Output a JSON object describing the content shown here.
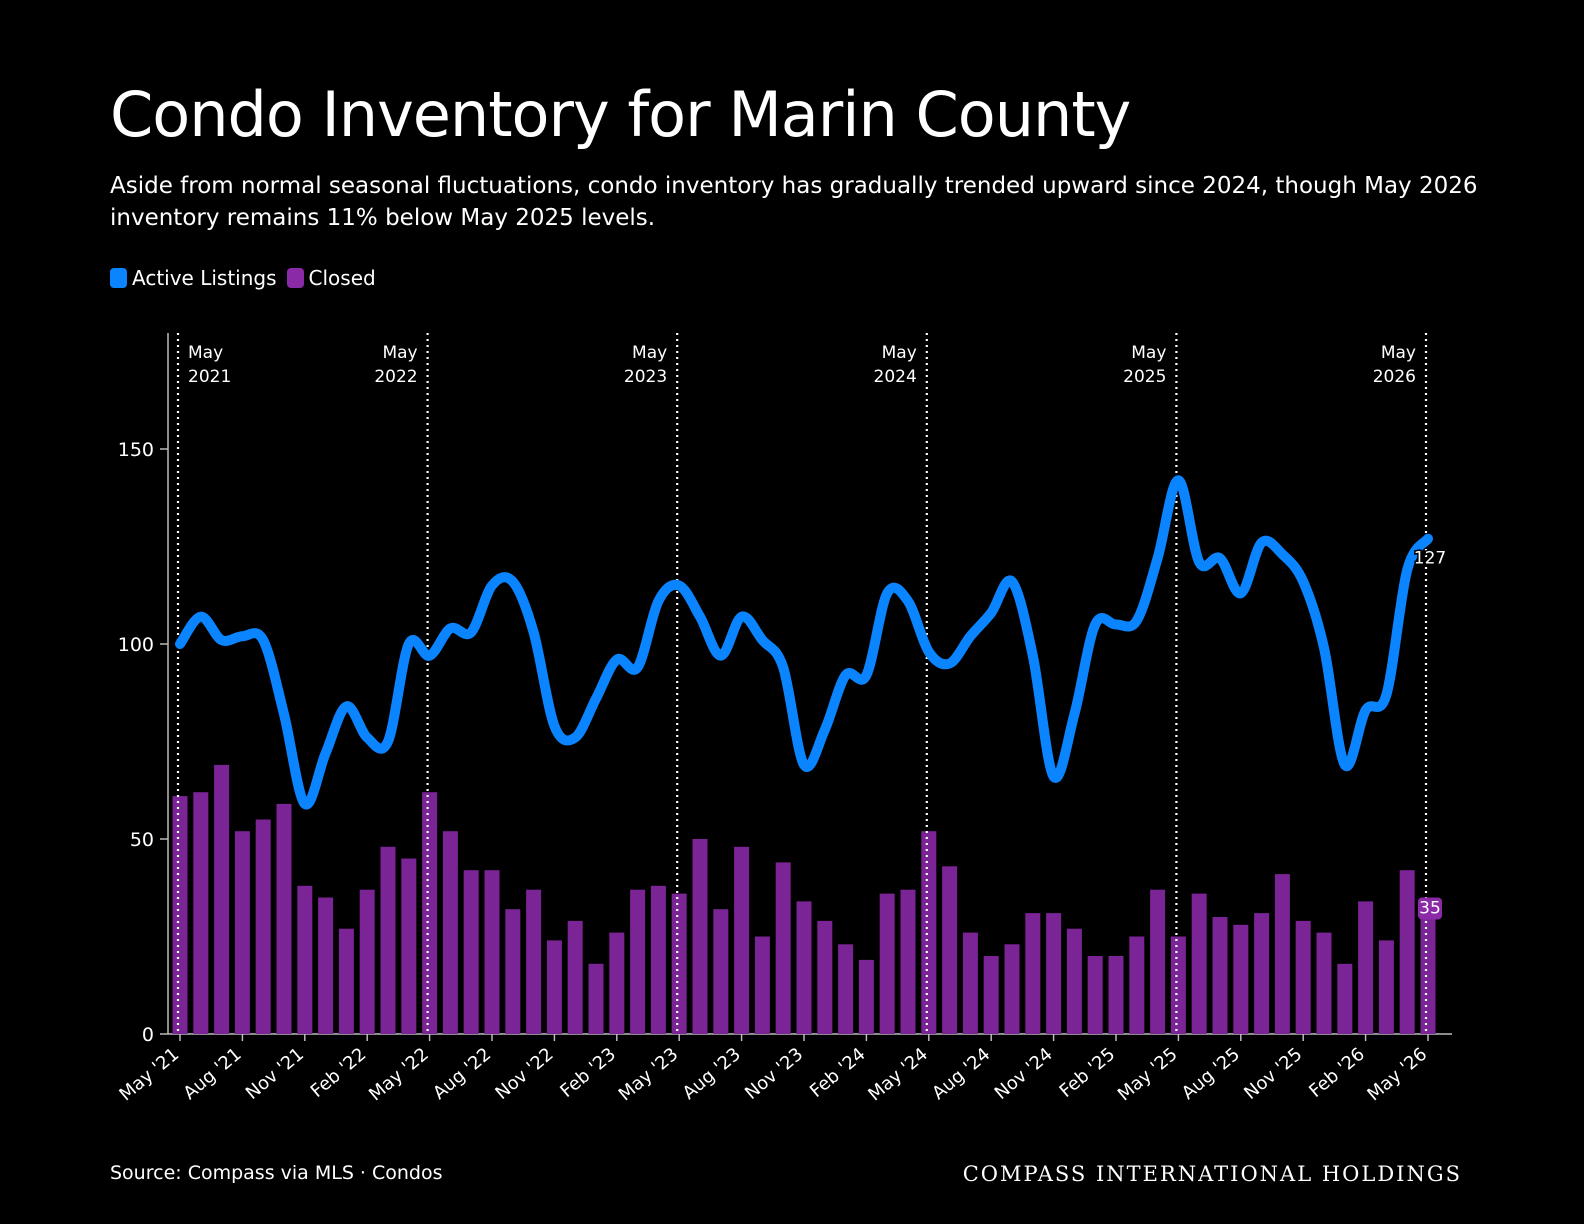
{
  "title": "Condo Inventory for Marin County",
  "subtitle": "Aside from normal seasonal fluctuations, condo inventory has gradually trended upward since 2024, though May 2026 inventory remains 11% below May 2025 levels.",
  "legend": {
    "active_label": "Active Listings",
    "closed_label": "Closed"
  },
  "colors": {
    "background": "#000000",
    "active": "#0a84ff",
    "closed": "#7a2496",
    "closed_label_bg": "#8a2aa6",
    "axis": "#bbbbbb",
    "text": "#ffffff"
  },
  "source": "Source: Compass via MLS · Condos",
  "brand": "COMPASS INTERNATIONAL HOLDINGS",
  "chart_data": {
    "type": "bar",
    "months": [
      "2021-05",
      "2021-06",
      "2021-07",
      "2021-08",
      "2021-09",
      "2021-10",
      "2021-11",
      "2021-12",
      "2022-01",
      "2022-02",
      "2022-03",
      "2022-04",
      "2022-05",
      "2022-06",
      "2022-07",
      "2022-08",
      "2022-09",
      "2022-10",
      "2022-11",
      "2022-12",
      "2023-01",
      "2023-02",
      "2023-03",
      "2023-04",
      "2023-05",
      "2023-06",
      "2023-07",
      "2023-08",
      "2023-09",
      "2023-10",
      "2023-11",
      "2023-12",
      "2024-01",
      "2024-02",
      "2024-03",
      "2024-04",
      "2024-05",
      "2024-06",
      "2024-07",
      "2024-08",
      "2024-09",
      "2024-10",
      "2024-11",
      "2024-12",
      "2025-01",
      "2025-02",
      "2025-03",
      "2025-04",
      "2025-05",
      "2025-06",
      "2025-07",
      "2025-08",
      "2025-09",
      "2025-10",
      "2025-11",
      "2025-12",
      "2026-01",
      "2026-02",
      "2026-03",
      "2026-04",
      "2026-05"
    ],
    "x_tick_labels": [
      {
        "month": "2021-05",
        "label": "May '21"
      },
      {
        "month": "2021-08",
        "label": "Aug '21"
      },
      {
        "month": "2021-11",
        "label": "Nov '21"
      },
      {
        "month": "2022-02",
        "label": "Feb '22"
      },
      {
        "month": "2022-05",
        "label": "May '22"
      },
      {
        "month": "2022-08",
        "label": "Aug '22"
      },
      {
        "month": "2022-11",
        "label": "Nov '22"
      },
      {
        "month": "2023-02",
        "label": "Feb '23"
      },
      {
        "month": "2023-05",
        "label": "May '23"
      },
      {
        "month": "2023-08",
        "label": "Aug '23"
      },
      {
        "month": "2023-11",
        "label": "Nov '23"
      },
      {
        "month": "2024-02",
        "label": "Feb '24"
      },
      {
        "month": "2024-05",
        "label": "May '24"
      },
      {
        "month": "2024-08",
        "label": "Aug '24"
      },
      {
        "month": "2024-11",
        "label": "Nov '24"
      },
      {
        "month": "2025-02",
        "label": "Feb '25"
      },
      {
        "month": "2025-05",
        "label": "May '25"
      },
      {
        "month": "2025-08",
        "label": "Aug '25"
      },
      {
        "month": "2025-11",
        "label": "Nov '25"
      },
      {
        "month": "2026-02",
        "label": "Feb '26"
      },
      {
        "month": "2026-05",
        "label": "May '26"
      }
    ],
    "series": [
      {
        "name": "Active Listings",
        "type": "line",
        "values": [
          100,
          107,
          101,
          102,
          101,
          82,
          59,
          72,
          84,
          76,
          75,
          100,
          97,
          104,
          103,
          115,
          116,
          103,
          79,
          76,
          86,
          96,
          94,
          111,
          115,
          107,
          97,
          107,
          101,
          94,
          69,
          78,
          92,
          92,
          113,
          111,
          98,
          95,
          102,
          108,
          116,
          97,
          66,
          82,
          105,
          105,
          106,
          122,
          142,
          121,
          122,
          113,
          126,
          123,
          116,
          99,
          69,
          83,
          87,
          119,
          127
        ]
      },
      {
        "name": "Closed",
        "type": "bar",
        "values": [
          61,
          62,
          69,
          52,
          55,
          59,
          38,
          35,
          27,
          37,
          48,
          45,
          62,
          52,
          42,
          42,
          32,
          37,
          24,
          29,
          18,
          26,
          37,
          38,
          36,
          50,
          32,
          48,
          25,
          44,
          34,
          29,
          23,
          19,
          36,
          37,
          52,
          43,
          26,
          20,
          23,
          31,
          31,
          27,
          20,
          20,
          25,
          37,
          25,
          36,
          30,
          28,
          31,
          41,
          29,
          26,
          18,
          34,
          24,
          42,
          35
        ]
      }
    ],
    "y_ticks": [
      0,
      50,
      100,
      150
    ],
    "ylim": [
      0,
      175
    ],
    "reference_lines": [
      {
        "month": "2021-05",
        "label_line1": "May",
        "label_line2": "2021",
        "label_side": "right"
      },
      {
        "month": "2022-05",
        "label_line1": "May",
        "label_line2": "2022",
        "label_side": "left"
      },
      {
        "month": "2023-05",
        "label_line1": "May",
        "label_line2": "2023",
        "label_side": "left"
      },
      {
        "month": "2024-05",
        "label_line1": "May",
        "label_line2": "2024",
        "label_side": "left"
      },
      {
        "month": "2025-05",
        "label_line1": "May",
        "label_line2": "2025",
        "label_side": "left"
      },
      {
        "month": "2026-05",
        "label_line1": "May",
        "label_line2": "2026",
        "label_side": "left"
      }
    ],
    "end_labels": {
      "active": "127",
      "closed": "35"
    },
    "legend_position": "top-left"
  }
}
